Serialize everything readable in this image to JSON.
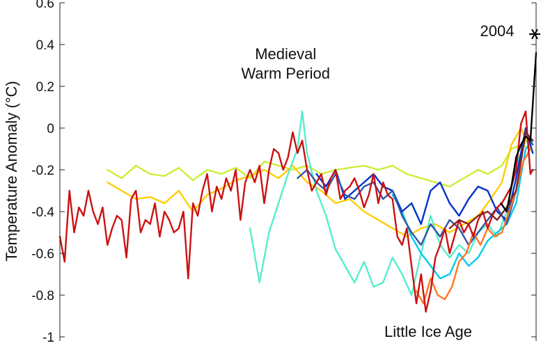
{
  "chart_data": {
    "type": "line",
    "title": "",
    "xlabel": "",
    "ylabel": "Temperature Anomaly (°C)",
    "ylim": [
      -1.0,
      0.6
    ],
    "xlim": [
      0,
      2004
    ],
    "grid": false,
    "legend": "none",
    "y_ticks": [
      {
        "value": 0.6,
        "label": "0.6"
      },
      {
        "value": 0.4,
        "label": "0.4"
      },
      {
        "value": 0.2,
        "label": "0.2"
      },
      {
        "value": 0,
        "label": "0"
      },
      {
        "value": -0.2,
        "label": "-0.2"
      },
      {
        "value": -0.4,
        "label": "-0.4"
      },
      {
        "value": -0.6,
        "label": "-0.6"
      },
      {
        "value": -0.8,
        "label": "-0.8"
      },
      {
        "value": -1.0,
        "label": "-1"
      }
    ],
    "annotations": [
      {
        "text_lines": [
          "Medieval",
          "Warm Period"
        ],
        "x": 950,
        "y": 0.33
      },
      {
        "text_lines": [
          "Little Ice Age"
        ],
        "x": 1550,
        "y": -1.0
      },
      {
        "text_lines": [
          "2004"
        ],
        "x": 1840,
        "y": 0.44
      }
    ],
    "marker": {
      "label": "2004",
      "x": 2004,
      "y": 0.45,
      "symbol": "*"
    },
    "series": [
      {
        "color": "#ccee33",
        "x": [
          200,
          260,
          320,
          380,
          440,
          500,
          560,
          620,
          680,
          740,
          800,
          860,
          920,
          980,
          1040,
          1100,
          1160,
          1220,
          1280,
          1340,
          1400,
          1460,
          1520,
          1580,
          1640,
          1700,
          1760,
          1800,
          1860,
          1900,
          1940,
          1980
        ],
        "y": [
          -0.2,
          -0.24,
          -0.18,
          -0.22,
          -0.23,
          -0.19,
          -0.25,
          -0.2,
          -0.22,
          -0.19,
          -0.24,
          -0.16,
          -0.18,
          -0.2,
          -0.18,
          -0.22,
          -0.2,
          -0.19,
          -0.18,
          -0.2,
          -0.18,
          -0.22,
          -0.24,
          -0.26,
          -0.28,
          -0.24,
          -0.2,
          -0.22,
          -0.18,
          -0.1,
          -0.08,
          -0.1
        ]
      },
      {
        "color": "#ffcc00",
        "x": [
          200,
          260,
          320,
          380,
          440,
          500,
          560,
          620,
          680,
          740,
          800,
          860,
          920,
          980,
          1040,
          1100,
          1160,
          1220,
          1280,
          1340,
          1400,
          1460,
          1520,
          1580,
          1640,
          1700,
          1760,
          1800,
          1860,
          1900,
          1940,
          1980
        ],
        "y": [
          -0.26,
          -0.3,
          -0.34,
          -0.33,
          -0.36,
          -0.3,
          -0.4,
          -0.32,
          -0.29,
          -0.25,
          -0.23,
          -0.2,
          -0.24,
          -0.18,
          -0.26,
          -0.3,
          -0.36,
          -0.34,
          -0.4,
          -0.44,
          -0.48,
          -0.52,
          -0.48,
          -0.46,
          -0.5,
          -0.46,
          -0.42,
          -0.36,
          -0.26,
          -0.08,
          0.0,
          -0.1
        ]
      },
      {
        "color": "#55eecc",
        "x": [
          800,
          840,
          880,
          920,
          960,
          1000,
          1020,
          1040,
          1080,
          1120,
          1160,
          1200,
          1240,
          1280,
          1320,
          1360,
          1400,
          1440,
          1480,
          1520,
          1560,
          1600,
          1640,
          1680,
          1720,
          1760,
          1800,
          1840,
          1880,
          1920,
          1960
        ],
        "y": [
          -0.48,
          -0.74,
          -0.5,
          -0.36,
          -0.22,
          -0.1,
          0.08,
          -0.12,
          -0.3,
          -0.42,
          -0.58,
          -0.66,
          -0.74,
          -0.64,
          -0.76,
          -0.74,
          -0.62,
          -0.7,
          -0.8,
          -0.6,
          -0.42,
          -0.56,
          -0.62,
          -0.56,
          -0.6,
          -0.5,
          -0.46,
          -0.52,
          -0.4,
          -0.18,
          -0.06
        ]
      },
      {
        "color": "#00ccee",
        "x": [
          1400,
          1440,
          1480,
          1520,
          1560,
          1600,
          1640,
          1680,
          1720,
          1760,
          1800,
          1840,
          1880,
          1920,
          1960,
          1990
        ],
        "y": [
          -0.32,
          -0.4,
          -0.52,
          -0.6,
          -0.66,
          -0.72,
          -0.7,
          -0.6,
          -0.66,
          -0.62,
          -0.54,
          -0.5,
          -0.46,
          -0.36,
          -0.1,
          -0.06
        ]
      },
      {
        "color": "#0033cc",
        "x": [
          1080,
          1120,
          1160,
          1200,
          1240,
          1280,
          1320,
          1360,
          1400,
          1440,
          1480,
          1520,
          1560,
          1600,
          1640,
          1680,
          1720,
          1760,
          1800,
          1840,
          1880,
          1920,
          1960,
          1990
        ],
        "y": [
          -0.22,
          -0.28,
          -0.2,
          -0.34,
          -0.3,
          -0.26,
          -0.22,
          -0.28,
          -0.3,
          -0.4,
          -0.36,
          -0.46,
          -0.3,
          -0.26,
          -0.36,
          -0.42,
          -0.34,
          -0.28,
          -0.3,
          -0.4,
          -0.44,
          -0.24,
          0.0,
          -0.12
        ]
      },
      {
        "color": "#3355aa",
        "x": [
          1000,
          1040,
          1080,
          1120,
          1160,
          1200,
          1240,
          1280,
          1320,
          1360,
          1400,
          1440,
          1480,
          1520,
          1560,
          1600,
          1640,
          1680,
          1720,
          1760,
          1800,
          1840,
          1880,
          1920,
          1960,
          1990
        ],
        "y": [
          -0.24,
          -0.2,
          -0.26,
          -0.3,
          -0.22,
          -0.32,
          -0.34,
          -0.28,
          -0.26,
          -0.34,
          -0.3,
          -0.42,
          -0.5,
          -0.56,
          -0.46,
          -0.52,
          -0.44,
          -0.48,
          -0.56,
          -0.5,
          -0.44,
          -0.38,
          -0.46,
          -0.3,
          -0.02,
          -0.08
        ]
      },
      {
        "color": "#ff7722",
        "x": [
          1500,
          1530,
          1560,
          1590,
          1620,
          1650,
          1680,
          1710,
          1740,
          1770,
          1800,
          1830,
          1860,
          1890,
          1920,
          1950,
          1980
        ],
        "y": [
          -0.78,
          -0.84,
          -0.72,
          -0.8,
          -0.82,
          -0.76,
          -0.64,
          -0.6,
          -0.5,
          -0.56,
          -0.48,
          -0.52,
          -0.5,
          -0.4,
          -0.3,
          -0.16,
          -0.1
        ]
      },
      {
        "color": "#cc1111",
        "x": [
          0,
          20,
          40,
          60,
          80,
          100,
          120,
          140,
          160,
          180,
          200,
          220,
          240,
          260,
          280,
          300,
          320,
          340,
          360,
          380,
          400,
          420,
          440,
          460,
          480,
          500,
          520,
          540,
          560,
          580,
          600,
          620,
          640,
          660,
          680,
          700,
          720,
          740,
          760,
          780,
          800,
          820,
          840,
          860,
          880,
          900,
          920,
          940,
          960,
          980,
          1000,
          1020,
          1040,
          1060,
          1080,
          1100,
          1120,
          1140,
          1160,
          1180,
          1200,
          1220,
          1240,
          1260,
          1280,
          1300,
          1320,
          1340,
          1360,
          1380,
          1400,
          1420,
          1440,
          1460,
          1480,
          1500,
          1520,
          1540,
          1560,
          1580,
          1600,
          1620,
          1640,
          1660,
          1680,
          1700,
          1720,
          1740,
          1760,
          1780,
          1800,
          1820,
          1840,
          1860,
          1880,
          1900,
          1920,
          1940,
          1960,
          1980,
          1990
        ],
        "y": [
          -0.52,
          -0.64,
          -0.3,
          -0.5,
          -0.38,
          -0.42,
          -0.3,
          -0.4,
          -0.46,
          -0.38,
          -0.56,
          -0.48,
          -0.42,
          -0.44,
          -0.62,
          -0.34,
          -0.3,
          -0.5,
          -0.44,
          -0.46,
          -0.36,
          -0.52,
          -0.4,
          -0.44,
          -0.5,
          -0.48,
          -0.4,
          -0.72,
          -0.36,
          -0.42,
          -0.3,
          -0.22,
          -0.4,
          -0.28,
          -0.34,
          -0.24,
          -0.3,
          -0.2,
          -0.44,
          -0.26,
          -0.2,
          -0.26,
          -0.18,
          -0.36,
          -0.2,
          -0.1,
          -0.12,
          -0.2,
          -0.14,
          -0.02,
          -0.12,
          -0.06,
          -0.2,
          -0.3,
          -0.26,
          -0.22,
          -0.32,
          -0.24,
          -0.2,
          -0.34,
          -0.3,
          -0.28,
          -0.24,
          -0.3,
          -0.38,
          -0.32,
          -0.22,
          -0.36,
          -0.26,
          -0.32,
          -0.34,
          -0.52,
          -0.56,
          -0.48,
          -0.66,
          -0.84,
          -0.7,
          -0.88,
          -0.78,
          -0.62,
          -0.56,
          -0.48,
          -0.6,
          -0.52,
          -0.44,
          -0.5,
          -0.46,
          -0.52,
          -0.44,
          -0.4,
          -0.48,
          -0.42,
          -0.38,
          -0.36,
          -0.32,
          -0.28,
          -0.2,
          0.02,
          0.08,
          -0.22,
          -0.2
        ]
      },
      {
        "color": "#882222",
        "x": [
          1640,
          1680,
          1720,
          1760,
          1800,
          1840,
          1880,
          1920,
          1960,
          1990
        ],
        "y": [
          -0.48,
          -0.44,
          -0.46,
          -0.42,
          -0.4,
          -0.44,
          -0.38,
          -0.3,
          -0.02,
          -0.06
        ]
      },
      {
        "color": "#000000",
        "x": [
          1856,
          1880,
          1900,
          1920,
          1940,
          1960,
          1980,
          1995,
          2004
        ],
        "y": [
          -0.36,
          -0.4,
          -0.28,
          -0.14,
          -0.08,
          -0.04,
          -0.06,
          0.2,
          0.36
        ]
      }
    ]
  }
}
